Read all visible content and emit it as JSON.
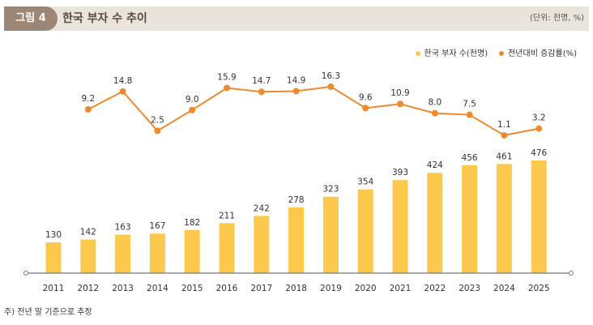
{
  "header": {
    "figure_label": "그림 4",
    "title": "한국 부자 수 추이",
    "unit": "(단위: 천명, %)"
  },
  "note": "주) 전년 말 기준으로 추정",
  "chart_data": {
    "type": "bar+line",
    "categories": [
      "2011",
      "2012",
      "2013",
      "2014",
      "2015",
      "2016",
      "2017",
      "2018",
      "2019",
      "2020",
      "2021",
      "2022",
      "2023",
      "2024",
      "2025"
    ],
    "series": [
      {
        "name": "한국 부자 수(천명)",
        "type": "bar",
        "color": "#fcc94c",
        "values": [
          130,
          142,
          163,
          167,
          182,
          211,
          242,
          278,
          323,
          354,
          393,
          424,
          456,
          461,
          476
        ]
      },
      {
        "name": "전년대비 증감률(%)",
        "type": "line",
        "color": "#ec8a2e",
        "values": [
          null,
          9.2,
          14.8,
          2.5,
          9.0,
          15.9,
          14.7,
          14.9,
          16.3,
          9.6,
          10.9,
          8.0,
          7.5,
          1.1,
          3.2
        ]
      }
    ],
    "legend": "top-right",
    "grid": false
  }
}
